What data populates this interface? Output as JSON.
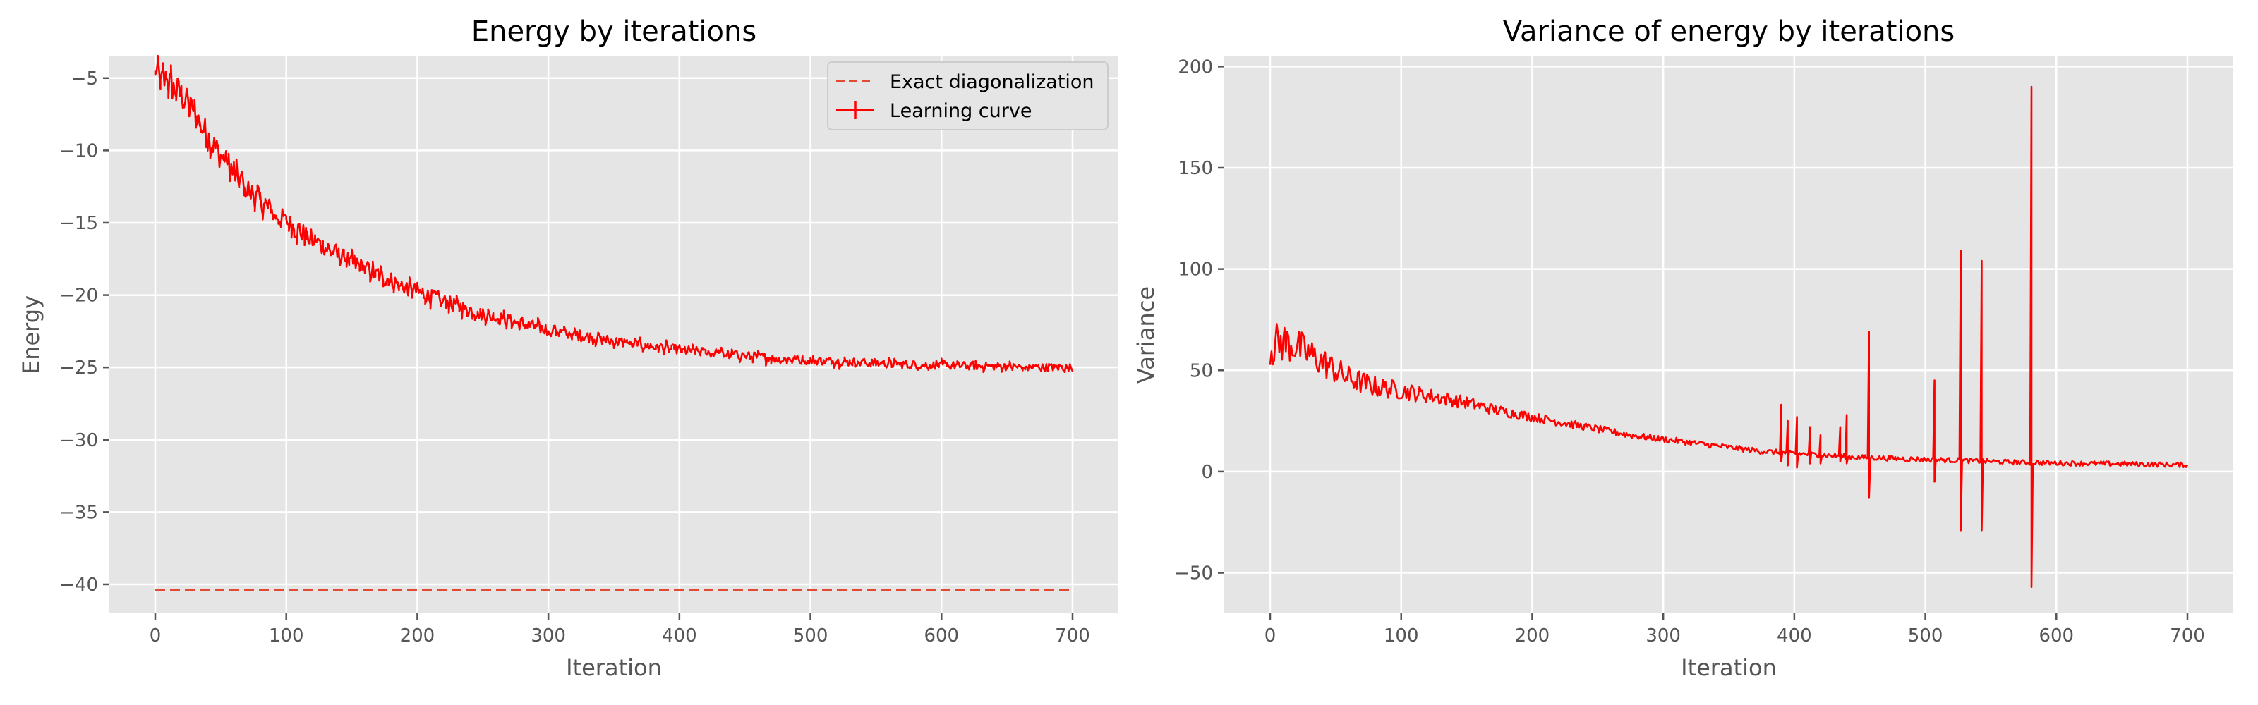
{
  "chart_data": [
    {
      "type": "line",
      "title": "Energy by iterations",
      "xlabel": "Iteration",
      "ylabel": "Energy",
      "xlim": [
        -35,
        735
      ],
      "ylim": [
        -42,
        -3.5
      ],
      "xticks": [
        0,
        100,
        200,
        300,
        400,
        500,
        600,
        700
      ],
      "yticks": [
        -5,
        -10,
        -15,
        -20,
        -25,
        -30,
        -35,
        -40
      ],
      "grid": true,
      "legend": "top-right",
      "series": [
        {
          "name": "Exact diagonalization",
          "style": "dashed",
          "color": "#e24a33",
          "x": [
            0,
            700
          ],
          "y": [
            -40.4,
            -40.4
          ]
        },
        {
          "name": "Learning curve",
          "style": "solid-noisy",
          "color": "#ff0000",
          "x": [
            0,
            10,
            20,
            30,
            40,
            50,
            60,
            70,
            80,
            90,
            100,
            120,
            140,
            160,
            180,
            200,
            225,
            250,
            275,
            300,
            325,
            350,
            375,
            400,
            425,
            450,
            475,
            500,
            525,
            550,
            575,
            600,
            625,
            650,
            675,
            700
          ],
          "y": [
            -4.8,
            -5.3,
            -6.2,
            -7.5,
            -9.0,
            -10.4,
            -11.6,
            -12.6,
            -13.5,
            -14.3,
            -15.0,
            -16.2,
            -17.3,
            -18.2,
            -19.0,
            -19.8,
            -20.6,
            -21.3,
            -21.9,
            -22.4,
            -22.8,
            -23.2,
            -23.5,
            -23.8,
            -24.0,
            -24.2,
            -24.4,
            -24.5,
            -24.6,
            -24.7,
            -24.8,
            -24.85,
            -24.9,
            -24.95,
            -25.0,
            -25.0
          ]
        }
      ]
    },
    {
      "type": "line",
      "title": "Variance of energy by iterations",
      "xlabel": "Iteration",
      "ylabel": "Variance",
      "xlim": [
        -35,
        735
      ],
      "ylim": [
        -70,
        205
      ],
      "xticks": [
        0,
        100,
        200,
        300,
        400,
        500,
        600,
        700
      ],
      "yticks": [
        200,
        150,
        100,
        50,
        0,
        -50
      ],
      "grid": true,
      "series": [
        {
          "color": "#ff0000",
          "style": "solid-noisy",
          "x": [
            0,
            10,
            20,
            30,
            40,
            50,
            60,
            80,
            100,
            125,
            150,
            175,
            200,
            225,
            250,
            275,
            300,
            325,
            350,
            375,
            400,
            425,
            450,
            475,
            500,
            525,
            550,
            575,
            600,
            625,
            650,
            675,
            700
          ],
          "y": [
            62,
            64,
            62,
            58,
            54,
            50,
            46,
            42,
            40,
            37,
            34,
            30,
            27,
            24,
            21,
            18,
            16,
            14,
            12,
            10,
            9,
            8,
            7,
            6.5,
            6,
            5.5,
            5,
            4.5,
            4.2,
            4,
            3.8,
            3.5,
            3.3
          ],
          "spikes": [
            {
              "x": 390,
              "high": 33,
              "low": 5
            },
            {
              "x": 395,
              "high": 25,
              "low": 3
            },
            {
              "x": 402,
              "high": 27,
              "low": 2
            },
            {
              "x": 412,
              "high": 22,
              "low": 4
            },
            {
              "x": 420,
              "high": 18,
              "low": 4
            },
            {
              "x": 435,
              "high": 22,
              "low": 5
            },
            {
              "x": 440,
              "high": 28,
              "low": 4
            },
            {
              "x": 457,
              "high": 69,
              "low": -13
            },
            {
              "x": 507,
              "high": 45,
              "low": -5
            },
            {
              "x": 527,
              "high": 109,
              "low": -29
            },
            {
              "x": 543,
              "high": 104,
              "low": -29
            },
            {
              "x": 581,
              "high": 190,
              "low": -57
            }
          ]
        }
      ]
    }
  ]
}
